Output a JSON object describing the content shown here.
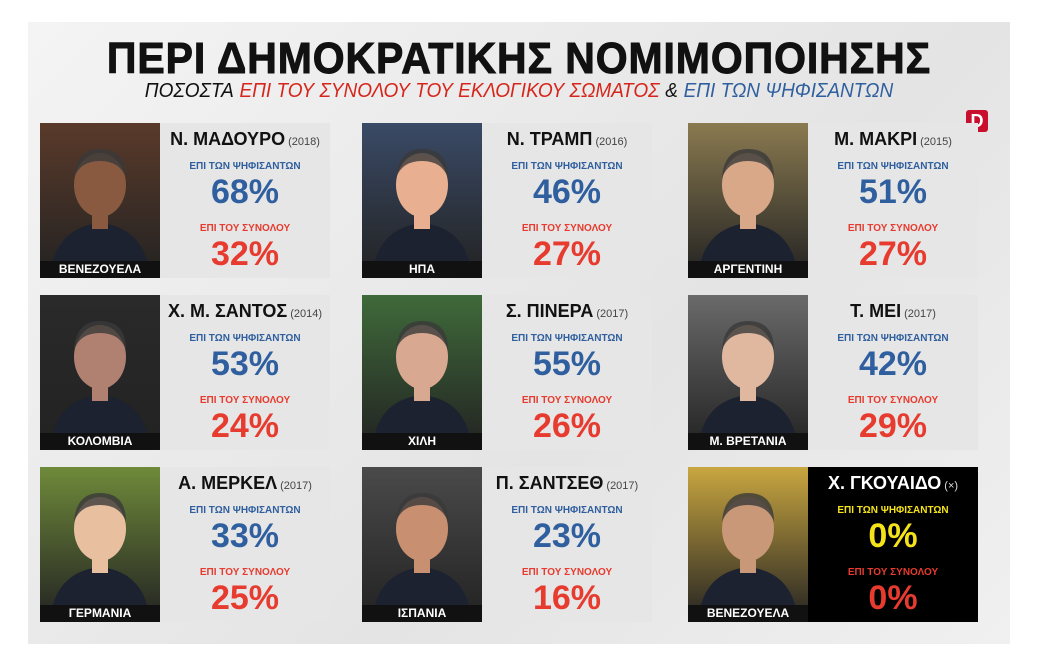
{
  "header": {
    "title": "ΠΕΡΙ ΔΗΜΟΚΡΑΤΙΚΗΣ ΝΟΜΙΜΟΠΟΙΗΣΗΣ",
    "subtitle": [
      "ΠΟΣΟΣΤΑ",
      "ΕΠΙ ΤΟΥ ΣΥΝΟΛΟΥ ΤΟΥ ΕΚΛΟΓΙΚΟΥ ΣΩΜΑΤΟΣ",
      "&",
      "ΕΠΙ ΤΩΝ ΨΗΦΙΣΑΝΤΩΝ"
    ],
    "logo": "D"
  },
  "cards": [
    {
      "name": "Ν. ΜΑΔΟΥΡΟ",
      "year": "(2018)",
      "country": "ΒΕΝΕΖΟΥΕΛΑ",
      "voters_label": "ΕΠΙ ΤΩΝ ΨΗΦΙΣΑΝΤΩΝ",
      "voters": "68%",
      "total_label": "ΕΠΙ ΤΟΥ ΣΥΝΟΛΟΥ",
      "total": "32%"
    },
    {
      "name": "Ν. ΤΡΑΜΠ",
      "year": "(2016)",
      "country": "ΗΠΑ",
      "voters_label": "ΕΠΙ ΤΩΝ ΨΗΦΙΣΑΝΤΩΝ",
      "voters": "46%",
      "total_label": "ΕΠΙ ΤΟΥ ΣΥΝΟΛΟΥ",
      "total": "27%"
    },
    {
      "name": "Μ. ΜΑΚΡΙ",
      "year": "(2015)",
      "country": "ΑΡΓΕΝΤΙΝΗ",
      "voters_label": "ΕΠΙ ΤΩΝ ΨΗΦΙΣΑΝΤΩΝ",
      "voters": "51%",
      "total_label": "ΕΠΙ ΤΟΥ ΣΥΝΟΛΟΥ",
      "total": "27%"
    },
    {
      "name": "Χ. Μ. ΣΑΝΤΟΣ",
      "year": "(2014)",
      "country": "ΚΟΛΟΜΒΙΑ",
      "voters_label": "ΕΠΙ ΤΩΝ ΨΗΦΙΣΑΝΤΩΝ",
      "voters": "53%",
      "total_label": "ΕΠΙ ΤΟΥ ΣΥΝΟΛΟΥ",
      "total": "24%"
    },
    {
      "name": "Σ. ΠΙΝΕΡΑ",
      "year": "(2017)",
      "country": "ΧΙΛΗ",
      "voters_label": "ΕΠΙ ΤΩΝ ΨΗΦΙΣΑΝΤΩΝ",
      "voters": "55%",
      "total_label": "ΕΠΙ ΤΟΥ ΣΥΝΟΛΟΥ",
      "total": "26%"
    },
    {
      "name": "Τ. ΜΕΙ",
      "year": "(2017)",
      "country": "Μ. ΒΡΕΤΑΝΙΑ",
      "voters_label": "ΕΠΙ ΤΩΝ ΨΗΦΙΣΑΝΤΩΝ",
      "voters": "42%",
      "total_label": "ΕΠΙ ΤΟΥ ΣΥΝΟΛΟΥ",
      "total": "29%"
    },
    {
      "name": "Α. ΜΕΡΚΕΛ",
      "year": "(2017)",
      "country": "ΓΕΡΜΑΝΙΑ",
      "voters_label": "ΕΠΙ ΤΩΝ ΨΗΦΙΣΑΝΤΩΝ",
      "voters": "33%",
      "total_label": "ΕΠΙ ΤΟΥ ΣΥΝΟΛΟΥ",
      "total": "25%"
    },
    {
      "name": "Π. ΣΑΝΤΣΕΘ",
      "year": "(2017)",
      "country": "ΙΣΠΑΝΙΑ",
      "voters_label": "ΕΠΙ ΤΩΝ ΨΗΦΙΣΑΝΤΩΝ",
      "voters": "23%",
      "total_label": "ΕΠΙ ΤΟΥ ΣΥΝΟΛΟΥ",
      "total": "16%"
    },
    {
      "name": "Χ. ΓΚΟΥΑΙΔΟ",
      "year": "(×)",
      "country": "ΒΕΝΕΖΟΥΕΛΑ",
      "voters_label": "ΕΠΙ ΤΩΝ ΨΗΦΙΣΑΝΤΩΝ",
      "voters": "0%",
      "total_label": "ΕΠΙ ΤΟΥ ΣΥΝΟΛΟΥ",
      "total": "0%"
    }
  ]
}
